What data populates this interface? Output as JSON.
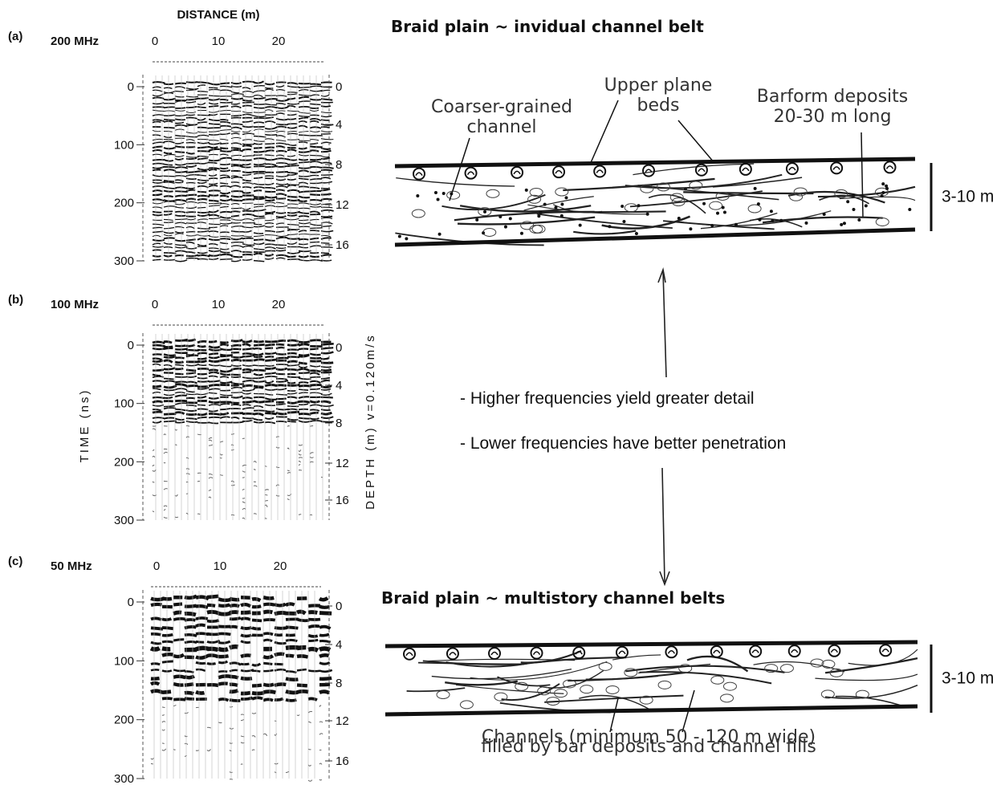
{
  "axis_labels": {
    "distance": "DISTANCE  (m)",
    "time": "TIME   (ns)",
    "depth": "DEPTH  (m)   v=0.120m/s"
  },
  "panels": [
    {
      "label": "(a)",
      "frequency": "200 MHz",
      "distance_ticks": [
        "0",
        "10",
        "20"
      ],
      "time_ticks": [
        "0",
        "100",
        "200",
        "300"
      ],
      "depth_ticks": [
        "0",
        "4",
        "8",
        "12",
        "16"
      ]
    },
    {
      "label": "(b)",
      "frequency": "100 MHz",
      "distance_ticks": [
        "0",
        "10",
        "20"
      ],
      "time_ticks": [
        "0",
        "100",
        "200",
        "300"
      ],
      "depth_ticks": [
        "0",
        "4",
        "8",
        "12",
        "16"
      ]
    },
    {
      "label": "(c)",
      "frequency": "50 MHz",
      "distance_ticks": [
        "0",
        "10",
        "20"
      ],
      "time_ticks": [
        "0",
        "100",
        "200",
        "300"
      ],
      "depth_ticks": [
        "0",
        "4",
        "8",
        "12",
        "16"
      ]
    }
  ],
  "sketches": [
    {
      "title": "Braid plain ~ invidual channel belt",
      "scale": "3-10 m",
      "annotations": [
        {
          "lines": [
            "Coarser-grained",
            "channel"
          ]
        },
        {
          "lines": [
            "Upper plane",
            "beds"
          ]
        },
        {
          "lines": [
            "Barform deposits",
            "20-30 m long"
          ]
        }
      ]
    },
    {
      "title": "Braid plain ~ multistory channel belts",
      "scale": "3-10 m",
      "annotations": [
        {
          "lines": [
            "Channels (minimum 50 - 120 m wide)",
            "filled by bar deposits and channel fills"
          ]
        }
      ]
    }
  ],
  "notes": [
    "- Higher frequencies yield greater detail",
    "- Lower frequencies have better penetration"
  ]
}
